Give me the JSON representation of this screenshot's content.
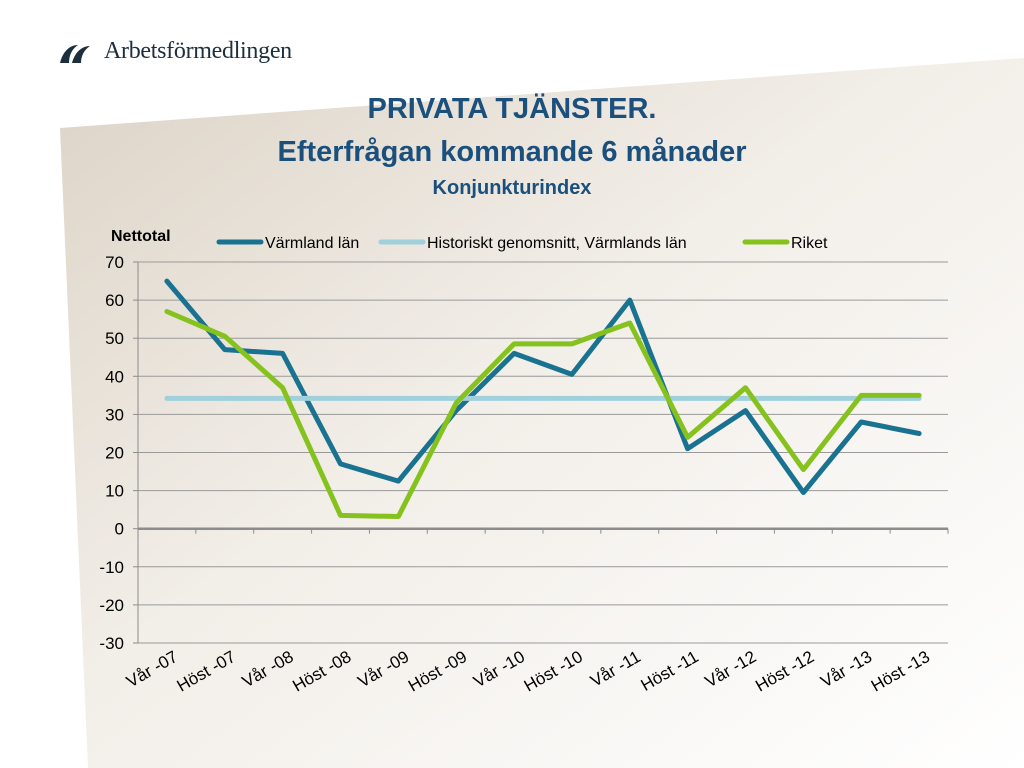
{
  "brand": {
    "name": "Arbetsförmedlingen"
  },
  "header": {
    "title": "PRIVATA TJÄNSTER.",
    "subtitle": "Efterfrågan kommande 6 månader",
    "subsubtitle": "Konjunkturindex"
  },
  "colors": {
    "title": "#1b4f7c",
    "varmland": "#1a7291",
    "historic": "#9fd0dc",
    "riket": "#86c21d"
  },
  "chart_data": {
    "type": "line",
    "ylabel": "Nettotal",
    "ylim": [
      -30,
      70
    ],
    "yticks": [
      70,
      60,
      50,
      40,
      30,
      20,
      10,
      0,
      -10,
      -20,
      -30
    ],
    "categories": [
      "Vår -07",
      "Höst -07",
      "Vår -08",
      "Höst -08",
      "Vår -09",
      "Höst -09",
      "Vår -10",
      "Höst -10",
      "Vår -11",
      "Höst -11",
      "Vår -12",
      "Höst -12",
      "Vår -13",
      "Höst -13"
    ],
    "grid": true,
    "legend_position": "top",
    "series": [
      {
        "name": "Värmland län",
        "color": "#1a7291",
        "values": [
          65,
          47,
          46,
          17,
          12.5,
          31,
          46,
          40.5,
          60,
          21,
          31,
          9.5,
          28,
          25
        ]
      },
      {
        "name": "Historiskt genomsnitt, Värmlands län",
        "color": "#9fd0dc",
        "values": [
          34.2,
          34.2,
          34.2,
          34.2,
          34.2,
          34.2,
          34.2,
          34.2,
          34.2,
          34.2,
          34.2,
          34.2,
          34.2,
          34.2
        ]
      },
      {
        "name": "Riket",
        "color": "#86c21d",
        "values": [
          57,
          50.5,
          37,
          3.5,
          3.2,
          33,
          48.5,
          48.5,
          54,
          24,
          37,
          15.5,
          35,
          35
        ]
      }
    ]
  }
}
